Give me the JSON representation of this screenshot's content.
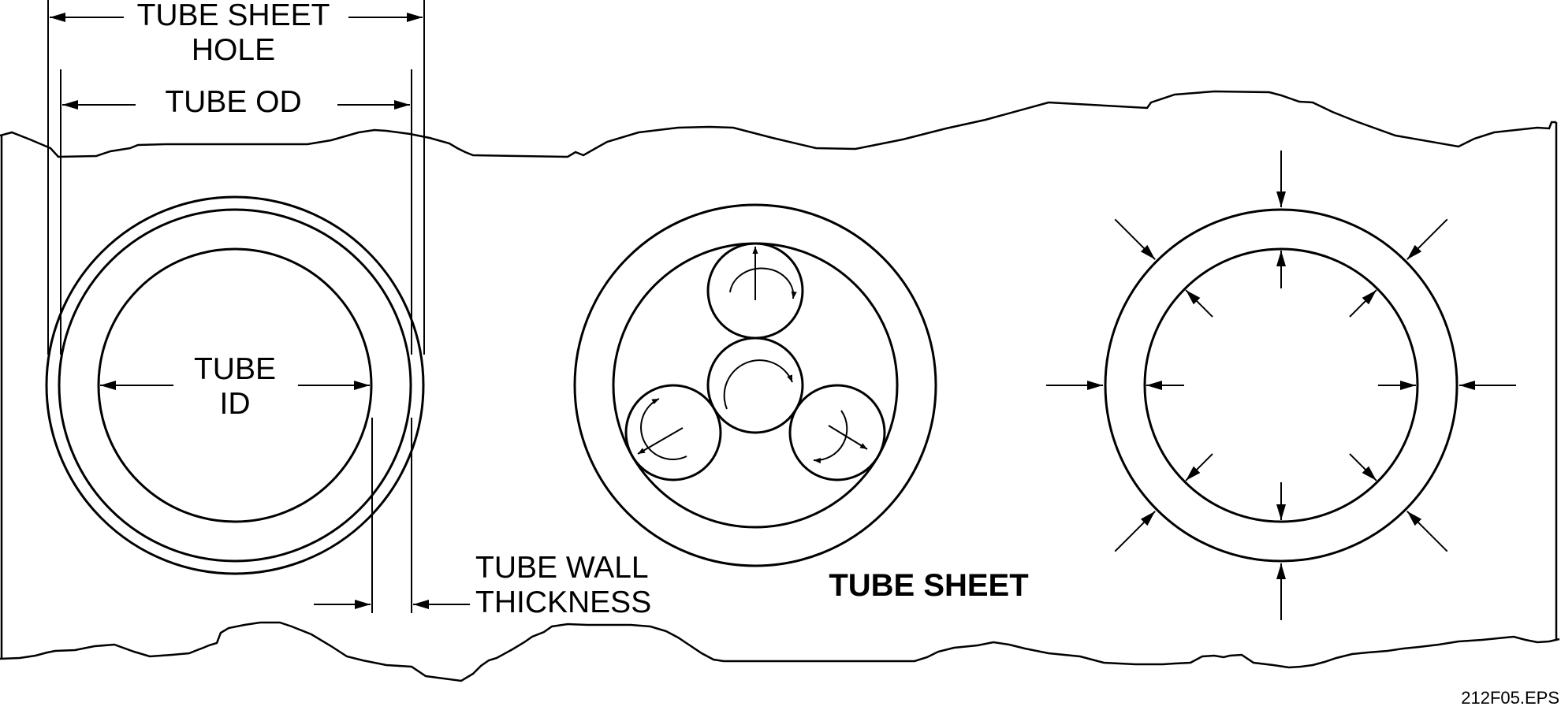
{
  "labels": {
    "tube_sheet_hole_line1": "TUBE SHEET",
    "tube_sheet_hole_line2": "HOLE",
    "tube_od": "TUBE OD",
    "tube_id_line1": "TUBE",
    "tube_id_line2": "ID",
    "tube_wall_line1": "TUBE WALL",
    "tube_wall_line2": "THICKNESS",
    "tube_sheet": "TUBE SHEET",
    "file_name": "212F05.EPS"
  },
  "colors": {
    "stroke": "#000000",
    "background": "#ffffff"
  }
}
